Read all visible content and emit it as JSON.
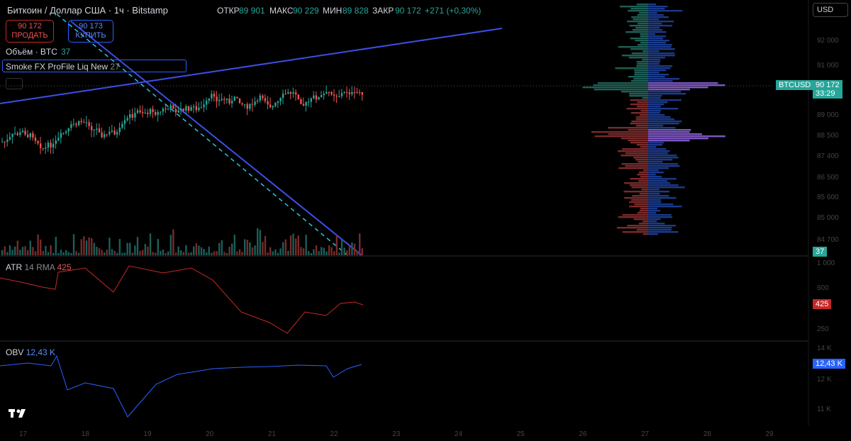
{
  "header": {
    "symbol": "Биткоин / Доллар США · 1ч · Bitstamp",
    "open_label": "ОТКР",
    "open": "89 901",
    "high_label": "МАКС",
    "high": "90 229",
    "low_label": "МИН",
    "low": "89 828",
    "close_label": "ЗАКР",
    "close": "90 172",
    "change": "+271 (+0,30%)",
    "currency": "USD"
  },
  "trade": {
    "sell_price": "90 172",
    "sell_label": "ПРОДАТЬ",
    "buy_price": "90 173",
    "buy_label": "КУПИТЬ"
  },
  "panes": {
    "volume_label": "Объём · BTC",
    "volume_value": "37",
    "profile_label": "Smoke FX ProFile Liq New",
    "profile_value": "27",
    "atr_label": "ATR",
    "atr_params": "14 RMA",
    "atr_value": "425",
    "obv_label": "OBV",
    "obv_value": "12,43 K"
  },
  "price_tag": {
    "symbol": "BTCUSD",
    "price": "90 172",
    "timer": "33:29"
  },
  "volume_tag": "37",
  "atr_tag": "425",
  "obv_tag": "12,43 K",
  "price_axis": [
    "92 000",
    "91 000",
    "89 000",
    "88 500",
    "87 400",
    "86 500",
    "85 600",
    "85 000",
    "84 700"
  ],
  "atr_axis": [
    "1 000",
    "600",
    "250"
  ],
  "obv_axis": [
    "14 K",
    "12 K",
    "11 K"
  ],
  "time_axis": [
    "17",
    "18",
    "19",
    "20",
    "21",
    "22",
    "23",
    "24",
    "25",
    "26",
    "27",
    "28",
    "29"
  ]
}
